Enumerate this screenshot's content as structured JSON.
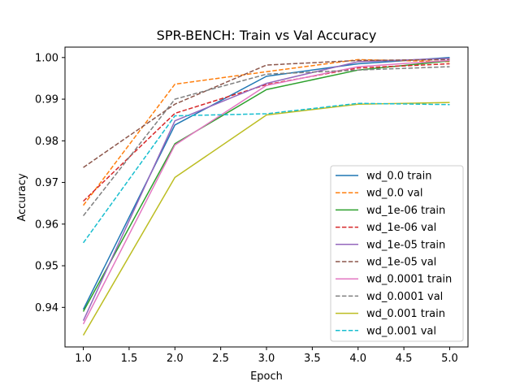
{
  "chart_data": {
    "type": "line",
    "title": "SPR-BENCH: Train vs Val Accuracy",
    "xlabel": "Epoch",
    "ylabel": "Accuracy",
    "xlim": [
      0.8,
      5.2
    ],
    "ylim": [
      0.9305,
      1.0025
    ],
    "xticks": [
      1.0,
      1.5,
      2.0,
      2.5,
      3.0,
      3.5,
      4.0,
      4.5,
      5.0
    ],
    "xtick_labels": [
      "1.0",
      "1.5",
      "2.0",
      "2.5",
      "3.0",
      "3.5",
      "4.0",
      "4.5",
      "5.0"
    ],
    "yticks": [
      0.94,
      0.95,
      0.96,
      0.97,
      0.98,
      0.99,
      1.0
    ],
    "ytick_labels": [
      "0.94",
      "0.95",
      "0.96",
      "0.97",
      "0.98",
      "0.99",
      "1.00"
    ],
    "grid": false,
    "legend_position": "lower-right",
    "x": [
      1,
      2,
      3,
      4,
      5
    ],
    "series": [
      {
        "name": "wd_0.0 train",
        "color": "#1f77b4",
        "dash": "solid",
        "values": [
          0.9395,
          0.9838,
          0.9955,
          0.9985,
          1.0
        ]
      },
      {
        "name": "wd_0.0 val",
        "color": "#ff7f0e",
        "dash": "dashed",
        "values": [
          0.9645,
          0.9936,
          0.9966,
          0.9995,
          0.999
        ]
      },
      {
        "name": "wd_1e-06 train",
        "color": "#2ca02c",
        "dash": "solid",
        "values": [
          0.939,
          0.9793,
          0.9923,
          0.997,
          0.9992
        ]
      },
      {
        "name": "wd_1e-06 val",
        "color": "#d62728",
        "dash": "dashed",
        "values": [
          0.9655,
          0.9866,
          0.9935,
          0.9975,
          0.9985
        ]
      },
      {
        "name": "wd_1e-05 train",
        "color": "#9467bd",
        "dash": "solid",
        "values": [
          0.9368,
          0.9848,
          0.9938,
          0.999,
          0.9998
        ]
      },
      {
        "name": "wd_1e-05 val",
        "color": "#8c564b",
        "dash": "dashed",
        "values": [
          0.9736,
          0.9888,
          0.9982,
          0.9993,
          0.9995
        ]
      },
      {
        "name": "wd_0.0001 train",
        "color": "#e377c2",
        "dash": "solid",
        "values": [
          0.936,
          0.979,
          0.9933,
          0.9978,
          0.9993
        ]
      },
      {
        "name": "wd_0.0001 val",
        "color": "#7f7f7f",
        "dash": "dashed",
        "values": [
          0.962,
          0.99,
          0.996,
          0.997,
          0.9978
        ]
      },
      {
        "name": "wd_0.001 train",
        "color": "#bcbd22",
        "dash": "solid",
        "values": [
          0.9333,
          0.9712,
          0.9862,
          0.9888,
          0.9892
        ]
      },
      {
        "name": "wd_0.001 val",
        "color": "#17becf",
        "dash": "dashed",
        "values": [
          0.9555,
          0.986,
          0.9865,
          0.989,
          0.9887
        ]
      }
    ]
  }
}
